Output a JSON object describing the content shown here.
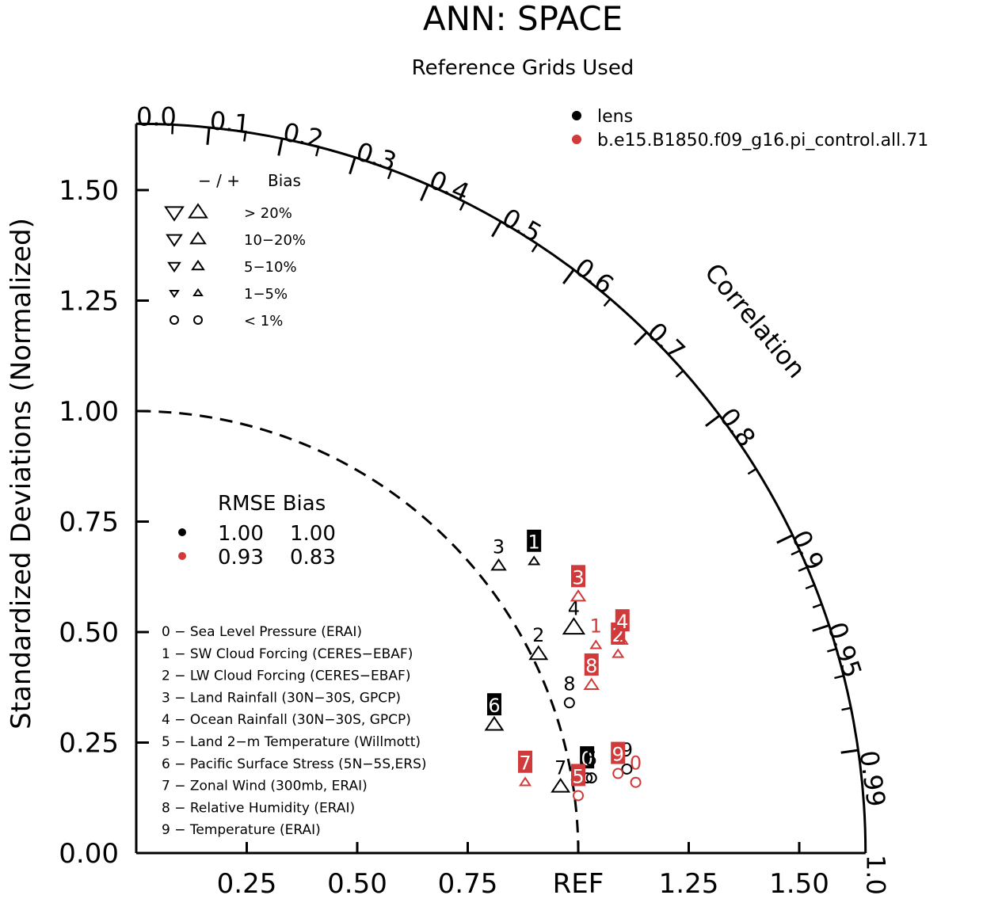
{
  "chart_data": {
    "type": "scatter",
    "subtype": "taylor-diagram",
    "title": "ANN: SPACE",
    "subtitle": "Reference Grids Used",
    "ylabel": "Standardized Deviations (Normalized)",
    "arc_label": "Correlation",
    "x_ticks": [
      "0.25",
      "0.50",
      "0.75",
      "REF",
      "1.25",
      "1.50"
    ],
    "x_tick_values": [
      0.25,
      0.5,
      0.75,
      1.0,
      1.25,
      1.5
    ],
    "y_ticks": [
      "0.00",
      "0.25",
      "0.50",
      "0.75",
      "1.00",
      "1.25",
      "1.50"
    ],
    "y_tick_values": [
      0,
      0.25,
      0.5,
      0.75,
      1.0,
      1.25,
      1.5
    ],
    "corr_labels": [
      "0.0",
      "0.1",
      "0.2",
      "0.3",
      "0.4",
      "0.5",
      "0.6",
      "0.7",
      "0.8",
      "0.9",
      "0.95",
      "0.99",
      "1.0"
    ],
    "corr_label_values": [
      0.0,
      0.1,
      0.2,
      0.3,
      0.4,
      0.5,
      0.6,
      0.7,
      0.8,
      0.9,
      0.95,
      0.99,
      1.0
    ],
    "radius_max": 1.65,
    "ref_arc": 1.0,
    "legend": {
      "cases": [
        {
          "name": "lens",
          "color": "#000000"
        },
        {
          "name": "b.e15.B1850.f09_g16.pi_control.all.71",
          "color": "#d03a3a"
        }
      ],
      "bias_header": [
        "−  /  +",
        "Bias"
      ],
      "bias_rows": [
        "> 20%",
        "10−20%",
        "5−10%",
        "1−5%",
        "< 1%"
      ],
      "rmse_header": "RMSE Bias",
      "rmse_rows": [
        {
          "rmse": "1.00",
          "bias": "1.00",
          "color": "#000000"
        },
        {
          "rmse": "0.93",
          "bias": "0.83",
          "color": "#d03a3a"
        }
      ],
      "variables": [
        "0 − Sea Level Pressure (ERAI)",
        "1 − SW Cloud Forcing (CERES−EBAF)",
        "2 − LW Cloud Forcing (CERES−EBAF)",
        "3 − Land Rainfall (30N−30S, GPCP)",
        "4 − Ocean Rainfall (30N−30S, GPCP)",
        "5 − Land 2−m Temperature (Willmott)",
        "6 − Pacific Surface Stress (5N−5S,ERS)",
        "7 − Zonal Wind (300mb, ERAI)",
        "8 − Relative Humidity (ERAI)",
        "9 − Temperature (ERAI)"
      ]
    },
    "series": [
      {
        "name": "lens",
        "color": "#000000",
        "points": [
          {
            "id": "0",
            "x": 1.02,
            "y": 0.17,
            "marker": "circle",
            "size": 1,
            "boxed": true
          },
          {
            "id": "1",
            "x": 0.9,
            "y": 0.66,
            "marker": "up",
            "size": 1,
            "boxed": true
          },
          {
            "id": "2",
            "x": 0.91,
            "y": 0.45,
            "marker": "up",
            "size": 3,
            "boxed": false
          },
          {
            "id": "3",
            "x": 0.82,
            "y": 0.65,
            "marker": "up",
            "size": 2,
            "boxed": false
          },
          {
            "id": "4",
            "x": 0.99,
            "y": 0.51,
            "marker": "up",
            "size": 4,
            "boxed": false
          },
          {
            "id": "5",
            "x": 1.03,
            "y": 0.17,
            "marker": "circle",
            "size": 1,
            "boxed": false
          },
          {
            "id": "6",
            "x": 0.81,
            "y": 0.29,
            "marker": "up",
            "size": 3,
            "boxed": true
          },
          {
            "id": "7",
            "x": 0.96,
            "y": 0.15,
            "marker": "up",
            "size": 3,
            "boxed": false
          },
          {
            "id": "8",
            "x": 0.98,
            "y": 0.34,
            "marker": "circle",
            "size": 1,
            "boxed": false
          },
          {
            "id": "9",
            "x": 1.11,
            "y": 0.19,
            "marker": "circle",
            "size": 1,
            "boxed": false
          }
        ]
      },
      {
        "name": "b.e15.B1850.f09_g16.pi_control.all.71",
        "color": "#d03a3a",
        "points": [
          {
            "id": "0",
            "x": 1.13,
            "y": 0.16,
            "marker": "circle",
            "size": 1,
            "boxed": false
          },
          {
            "id": "1",
            "x": 1.04,
            "y": 0.47,
            "marker": "up",
            "size": 1,
            "boxed": false
          },
          {
            "id": "2",
            "x": 1.09,
            "y": 0.45,
            "marker": "up",
            "size": 1,
            "boxed": true
          },
          {
            "id": "3",
            "x": 1.0,
            "y": 0.58,
            "marker": "up",
            "size": 2,
            "boxed": true
          },
          {
            "id": "4",
            "x": 1.1,
            "y": 0.48,
            "marker": "up",
            "size": 1,
            "boxed": true
          },
          {
            "id": "5",
            "x": 1.0,
            "y": 0.13,
            "marker": "circle",
            "size": 1,
            "boxed": true
          },
          {
            "id": "7",
            "x": 0.88,
            "y": 0.16,
            "marker": "up",
            "size": 1,
            "boxed": true
          },
          {
            "id": "8",
            "x": 1.03,
            "y": 0.38,
            "marker": "up",
            "size": 2,
            "boxed": true
          },
          {
            "id": "9",
            "x": 1.09,
            "y": 0.18,
            "marker": "circle",
            "size": 1,
            "boxed": true
          }
        ]
      }
    ]
  }
}
